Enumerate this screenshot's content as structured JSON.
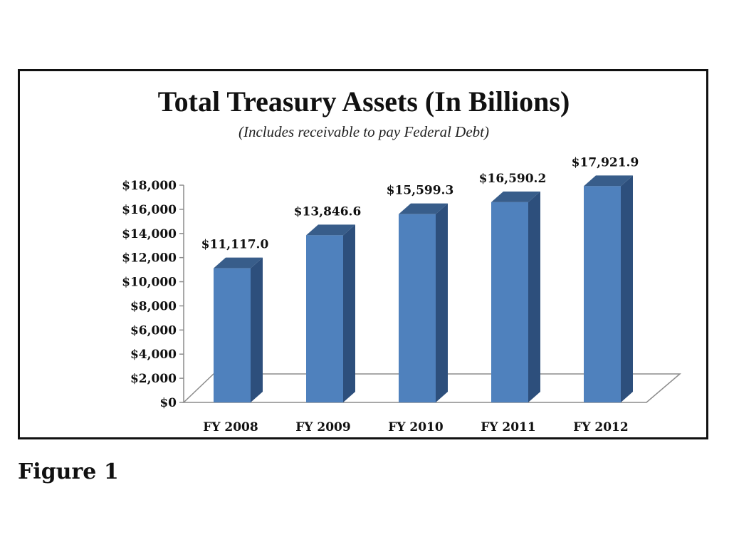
{
  "caption": "Figure 1",
  "chart_data": {
    "type": "bar",
    "title": "Total Treasury Assets (In Billions)",
    "subtitle": "(Includes receivable to pay Federal Debt)",
    "categories": [
      "FY 2008",
      "FY 2009",
      "FY 2010",
      "FY 2011",
      "FY 2012"
    ],
    "values": [
      11117.0,
      13846.6,
      15599.3,
      16590.2,
      17921.9
    ],
    "value_labels": [
      "$11,117.0",
      "$13,846.6",
      "$15,599.3",
      "$16,590.2",
      "$17,921.9"
    ],
    "ylim": [
      0,
      18000
    ],
    "yticks": [
      0,
      2000,
      4000,
      6000,
      8000,
      10000,
      12000,
      14000,
      16000,
      18000
    ],
    "ytick_labels": [
      "$0",
      "$2,000",
      "$4,000",
      "$6,000",
      "$8,000",
      "$10,000",
      "$12,000",
      "$14,000",
      "$16,000",
      "$18,000"
    ],
    "style": "3d-column",
    "grid": false,
    "legend": "none",
    "colors": {
      "bar_front": "#4f81bd",
      "bar_side": "#2d4f7c",
      "bar_top": "#385d8a",
      "axis": "#8c8c8c"
    }
  }
}
